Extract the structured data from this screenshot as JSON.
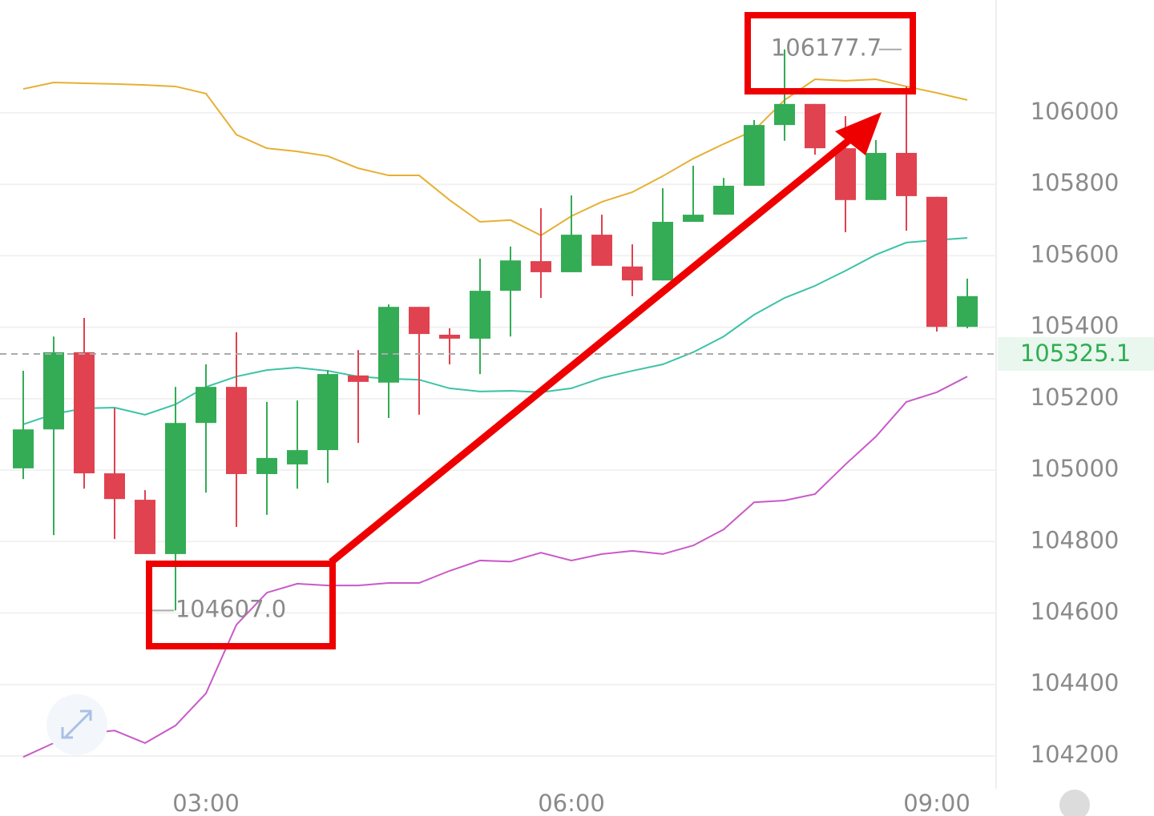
{
  "chart_data": {
    "type": "candlestick",
    "categories": [
      null,
      null,
      null,
      null,
      null,
      null,
      "03:00",
      null,
      null,
      null,
      null,
      null,
      null,
      null,
      null,
      null,
      null,
      null,
      "06:00",
      null,
      null,
      null,
      null,
      null,
      null,
      null,
      null,
      null,
      null,
      null,
      "09:00",
      null
    ],
    "open": [
      105005,
      105114,
      105330,
      104991,
      104917,
      104765,
      105132,
      105233,
      104989,
      105016,
      105056,
      105265,
      105245,
      105457,
      105379,
      105368,
      105502,
      105585,
      105554,
      105659,
      105570,
      105531,
      105695,
      105715,
      105796,
      105966,
      106025,
      105901,
      105756,
      105888,
      105765,
      105401
    ],
    "high": [
      105278,
      105374,
      105426,
      105173,
      104944,
      105233,
      105296,
      105386,
      105191,
      105195,
      105280,
      105336,
      105464,
      105457,
      105397,
      105592,
      105626,
      105733,
      105769,
      105715,
      105632,
      105789,
      105852,
      105818,
      105980,
      106177.7,
      106025,
      105991,
      105924,
      106074,
      105765,
      105536
    ],
    "low": [
      104975,
      104818,
      104948,
      104807,
      104765,
      104607,
      104937,
      104841,
      104875,
      104948,
      104964,
      105076,
      105146,
      105155,
      105296,
      105269,
      105374,
      105482,
      105554,
      105572,
      105487,
      105531,
      105695,
      105715,
      105796,
      105922,
      105883,
      105666,
      105756,
      105670,
      105388,
      105397
    ],
    "close": [
      105114,
      105330,
      104991,
      104919,
      104765,
      105132,
      105233,
      104989,
      105034,
      105056,
      105269,
      105247,
      105457,
      105381,
      105368,
      105502,
      105587,
      105554,
      105659,
      105572,
      105531,
      105695,
      105715,
      105796,
      105966,
      106025,
      105901,
      105756,
      105888,
      105767,
      105401,
      105487
    ],
    "up_color": "#33ac55",
    "down_color": "#e0424f",
    "lines": [
      {
        "color": "#e6b033",
        "values": [
          106067,
          106085,
          106083,
          106081,
          106078,
          106074,
          106054,
          105939,
          105901,
          105892,
          105879,
          105845,
          105825,
          105825,
          105756,
          105695,
          105700,
          105657,
          105711,
          105751,
          105778,
          105823,
          105872,
          105913,
          105951,
          106036,
          106094,
          106090,
          106094,
          106074,
          106056,
          106036
        ]
      },
      {
        "color": "#3cc3a6",
        "values": [
          105128,
          105157,
          105173,
          105175,
          105155,
          105184,
          105233,
          105262,
          105280,
          105287,
          105278,
          105262,
          105256,
          105253,
          105229,
          105220,
          105222,
          105218,
          105229,
          105258,
          105278,
          105296,
          105330,
          105374,
          105435,
          105482,
          105516,
          105558,
          105603,
          105637,
          105644,
          105650
        ]
      },
      {
        "color": "#c95ac8",
        "values": [
          104197,
          104236,
          104262,
          104271,
          104236,
          104285,
          104375,
          104567,
          104657,
          104682,
          104677,
          104677,
          104684,
          104684,
          104718,
          104747,
          104744,
          104769,
          104747,
          104765,
          104774,
          104765,
          104789,
          104834,
          104910,
          104915,
          104933,
          105016,
          105094,
          105191,
          105218,
          105262
        ]
      }
    ],
    "ylim": [
      104108,
      106316
    ],
    "yticks": [
      104200,
      104400,
      104600,
      104800,
      105000,
      105200,
      105400,
      105600,
      105800,
      106000
    ],
    "grid": true,
    "current_price": 105325.1,
    "current_price_color": "#2fae52",
    "annotations": [
      {
        "value": 106177.7,
        "label": "106177.7",
        "index": 25
      },
      {
        "value": 104607,
        "label": "104607.0",
        "index": 5
      }
    ],
    "watermark_icon": "K"
  }
}
